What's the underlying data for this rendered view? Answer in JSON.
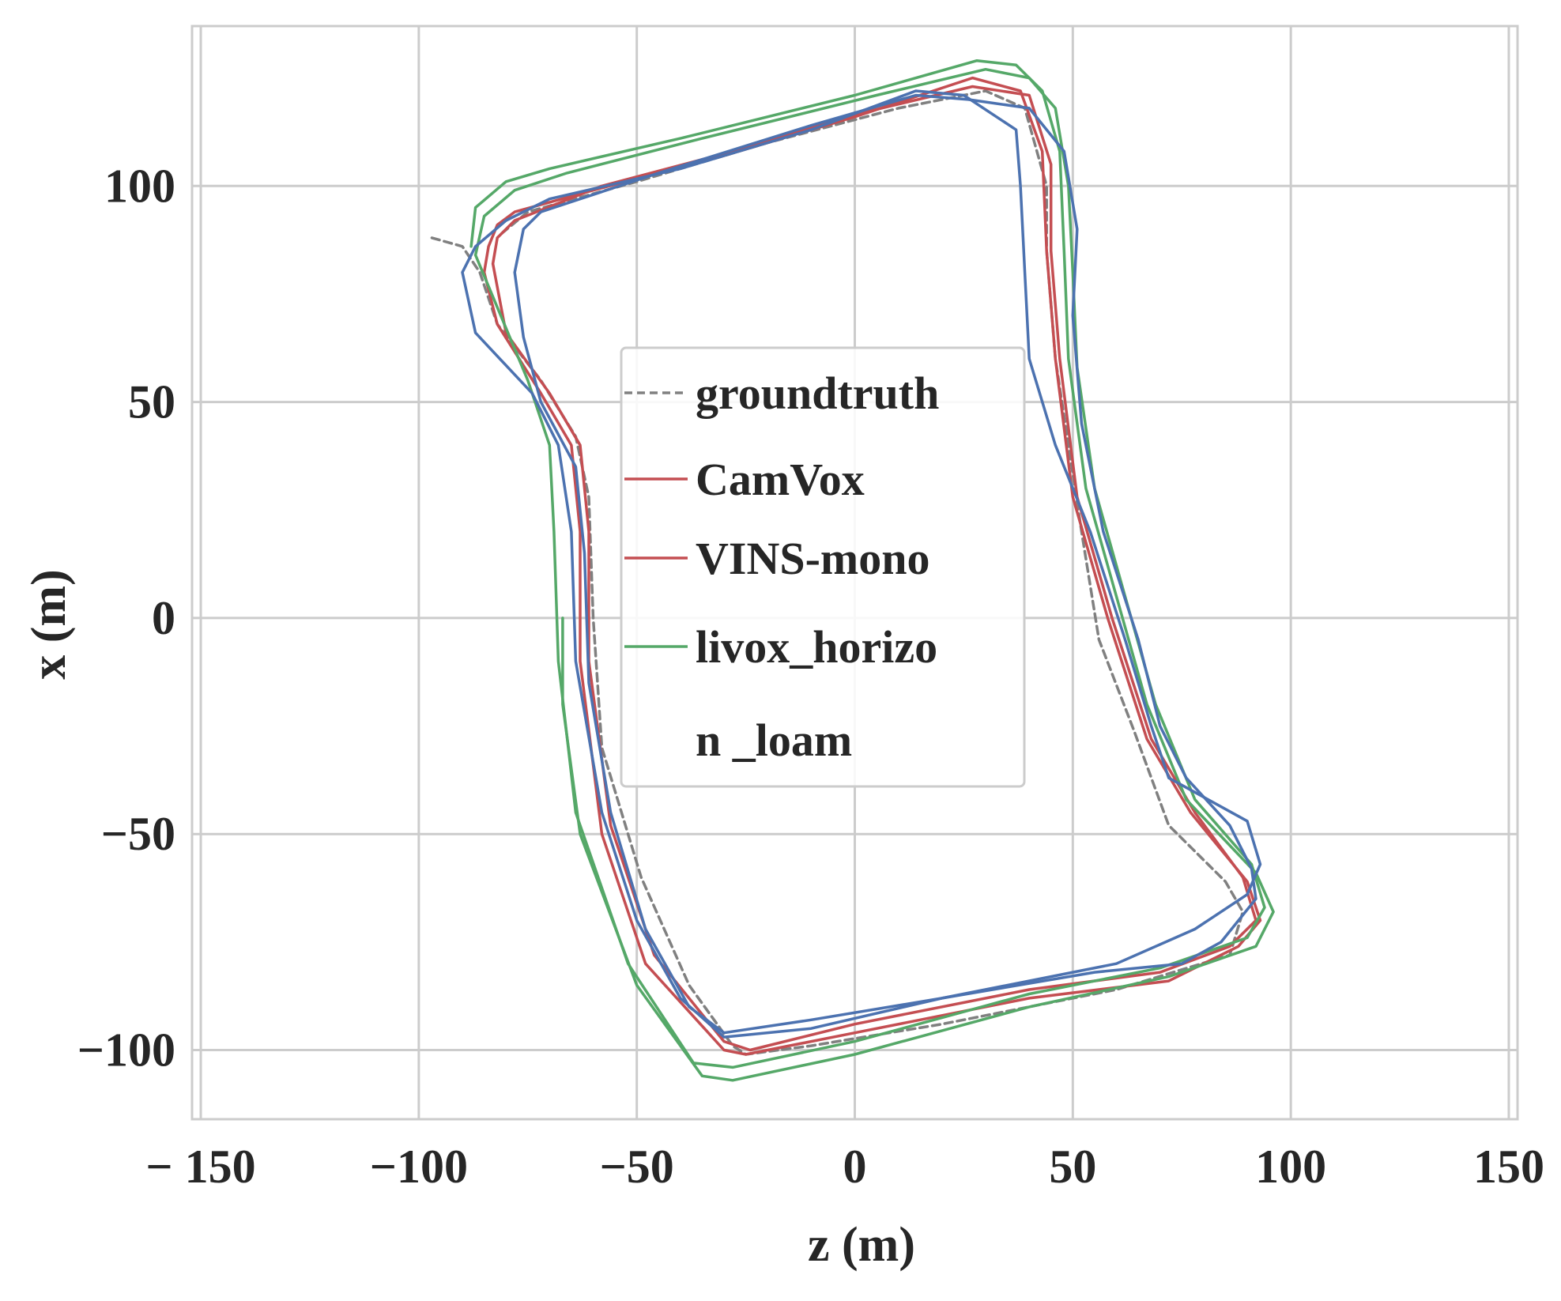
{
  "chart_data": {
    "type": "line",
    "xlabel": "z (m)",
    "ylabel": "x (m)",
    "xlim": [
      -152,
      152
    ],
    "ylim": [
      -116,
      137
    ],
    "x_ticks": [
      -150,
      -100,
      -50,
      0,
      50,
      100,
      150
    ],
    "x_tick_labels": [
      "− 150",
      "−100",
      "−50",
      "0",
      "50",
      "100",
      "150"
    ],
    "y_ticks": [
      -100,
      -50,
      0,
      50,
      100
    ],
    "y_tick_labels": [
      "−100",
      "−50",
      "0",
      "50",
      "100"
    ],
    "grid": true,
    "legend_placement": "center",
    "legend": [
      {
        "label": "groundtruth",
        "series": 0
      },
      {
        "label": "CamVox",
        "series": 1
      },
      {
        "label": "VINS-mono",
        "series": 2
      },
      {
        "label": "livox_horizo",
        "series": 3
      },
      {
        "label": "n _loam",
        "series": -1
      }
    ],
    "series": [
      {
        "name": "groundtruth",
        "color": "#808080",
        "dashed": true,
        "points": [
          [
            -97,
            88
          ],
          [
            -90,
            86
          ],
          [
            -86,
            80
          ],
          [
            -82,
            68
          ],
          [
            -72,
            55
          ],
          [
            -64,
            42
          ],
          [
            -61,
            28
          ],
          [
            -60,
            0
          ],
          [
            -58,
            -30
          ],
          [
            -49,
            -60
          ],
          [
            -38,
            -85
          ],
          [
            -28,
            -99
          ],
          [
            -25,
            -101
          ],
          [
            -10,
            -99
          ],
          [
            20,
            -94
          ],
          [
            60,
            -86
          ],
          [
            86,
            -78
          ],
          [
            89,
            -68
          ],
          [
            85,
            -61
          ],
          [
            72,
            -48
          ],
          [
            64,
            -26
          ],
          [
            56,
            -5
          ],
          [
            52,
            20
          ],
          [
            46,
            60
          ],
          [
            44,
            85
          ],
          [
            44,
            100
          ],
          [
            39,
            118
          ],
          [
            30,
            122
          ],
          [
            10,
            118
          ],
          [
            -20,
            110
          ],
          [
            -50,
            101
          ],
          [
            -75,
            94
          ],
          [
            -81,
            89
          ]
        ]
      },
      {
        "name": "CamVox",
        "color": "#c44e52",
        "dashed": false,
        "points": [
          [
            -85,
            80
          ],
          [
            -84,
            86
          ],
          [
            -82,
            91
          ],
          [
            -78,
            94
          ],
          [
            -60,
            99
          ],
          [
            -30,
            107
          ],
          [
            0,
            116
          ],
          [
            27,
            125
          ],
          [
            38,
            122
          ],
          [
            43,
            108
          ],
          [
            44,
            85
          ],
          [
            46,
            60
          ],
          [
            50,
            28
          ],
          [
            58,
            0
          ],
          [
            67,
            -28
          ],
          [
            77,
            -45
          ],
          [
            90,
            -61
          ],
          [
            93,
            -70
          ],
          [
            88,
            -76
          ],
          [
            72,
            -84
          ],
          [
            40,
            -88
          ],
          [
            0,
            -96
          ],
          [
            -25,
            -101
          ],
          [
            -30,
            -100
          ],
          [
            -48,
            -80
          ],
          [
            -58,
            -50
          ],
          [
            -63,
            -10
          ],
          [
            -63,
            20
          ],
          [
            -65,
            40
          ],
          [
            -72,
            52
          ],
          [
            -82,
            68
          ],
          [
            -85,
            80
          ]
        ]
      },
      {
        "name": "CamVox",
        "color": "#c44e52",
        "dashed": false,
        "points": [
          [
            -83,
            82
          ],
          [
            -82,
            88
          ],
          [
            -78,
            92
          ],
          [
            -58,
            100
          ],
          [
            -28,
            108
          ],
          [
            2,
            117
          ],
          [
            27,
            123
          ],
          [
            40,
            121
          ],
          [
            45,
            105
          ],
          [
            45,
            85
          ],
          [
            47,
            60
          ],
          [
            51,
            28
          ],
          [
            59,
            0
          ],
          [
            68,
            -28
          ],
          [
            78,
            -45
          ],
          [
            89,
            -60
          ],
          [
            92,
            -70
          ],
          [
            86,
            -76
          ],
          [
            70,
            -82
          ],
          [
            40,
            -86
          ],
          [
            0,
            -94
          ],
          [
            -24,
            -100
          ],
          [
            -30,
            -98
          ],
          [
            -46,
            -78
          ],
          [
            -56,
            -48
          ],
          [
            -61,
            -10
          ],
          [
            -61,
            20
          ],
          [
            -63,
            40
          ],
          [
            -70,
            52
          ],
          [
            -80,
            66
          ],
          [
            -83,
            82
          ]
        ]
      },
      {
        "name": "VINS-mono",
        "color": "#55a868",
        "dashed": false,
        "points": [
          [
            -88,
            86
          ],
          [
            -87,
            95
          ],
          [
            -80,
            101
          ],
          [
            -70,
            104
          ],
          [
            -40,
            111
          ],
          [
            0,
            121
          ],
          [
            28,
            129
          ],
          [
            37,
            128
          ],
          [
            43,
            122
          ],
          [
            47,
            108
          ],
          [
            48,
            85
          ],
          [
            49,
            60
          ],
          [
            53,
            30
          ],
          [
            60,
            5
          ],
          [
            67,
            -20
          ],
          [
            76,
            -42
          ],
          [
            92,
            -59
          ],
          [
            96,
            -68
          ],
          [
            92,
            -76
          ],
          [
            72,
            -83
          ],
          [
            40,
            -90
          ],
          [
            0,
            -101
          ],
          [
            -28,
            -107
          ],
          [
            -35,
            -106
          ],
          [
            -50,
            -85
          ],
          [
            -63,
            -50
          ],
          [
            -67,
            -20
          ],
          [
            -67,
            0
          ]
        ]
      },
      {
        "name": "VINS-mono",
        "color": "#55a868",
        "dashed": false,
        "points": [
          [
            -87,
            84
          ],
          [
            -85,
            93
          ],
          [
            -78,
            99
          ],
          [
            -66,
            103
          ],
          [
            -35,
            111
          ],
          [
            5,
            121
          ],
          [
            30,
            127
          ],
          [
            40,
            125
          ],
          [
            46,
            118
          ],
          [
            49,
            100
          ],
          [
            50,
            80
          ],
          [
            51,
            58
          ],
          [
            55,
            30
          ],
          [
            62,
            5
          ],
          [
            69,
            -20
          ],
          [
            78,
            -42
          ],
          [
            91,
            -57
          ],
          [
            94,
            -67
          ],
          [
            90,
            -74
          ],
          [
            70,
            -81
          ],
          [
            40,
            -87
          ],
          [
            0,
            -98
          ],
          [
            -28,
            -104
          ],
          [
            -37,
            -103
          ],
          [
            -52,
            -80
          ],
          [
            -64,
            -45
          ],
          [
            -68,
            -10
          ],
          [
            -69,
            20
          ],
          [
            -70,
            40
          ],
          [
            -75,
            55
          ],
          [
            -87,
            84
          ]
        ]
      },
      {
        "name": "livox_horizo",
        "color": "#4c72b0",
        "dashed": false,
        "points": [
          [
            -80,
            92
          ],
          [
            -70,
            97
          ],
          [
            -40,
            104
          ],
          [
            -10,
            113
          ],
          [
            14,
            122
          ],
          [
            25,
            121
          ],
          [
            37,
            113
          ],
          [
            38,
            100
          ],
          [
            39,
            80
          ],
          [
            40,
            60
          ],
          [
            46,
            40
          ],
          [
            54,
            20
          ],
          [
            62,
            -5
          ],
          [
            68,
            -25
          ],
          [
            72,
            -37
          ],
          [
            90,
            -47
          ],
          [
            93,
            -57
          ],
          [
            90,
            -64
          ],
          [
            78,
            -72
          ],
          [
            60,
            -80
          ],
          [
            20,
            -88
          ],
          [
            -10,
            -95
          ],
          [
            -30,
            -97
          ],
          [
            -40,
            -88
          ],
          [
            -50,
            -70
          ],
          [
            -58,
            -45
          ],
          [
            -64,
            -10
          ],
          [
            -65,
            20
          ],
          [
            -68,
            40
          ],
          [
            -74,
            52
          ],
          [
            -87,
            66
          ],
          [
            -90,
            80
          ],
          [
            -87,
            86
          ],
          [
            -80,
            92
          ]
        ]
      },
      {
        "name": "livox_horizo",
        "color": "#4c72b0",
        "dashed": false,
        "points": [
          [
            -76,
            90
          ],
          [
            -72,
            94
          ],
          [
            -45,
            103
          ],
          [
            -10,
            114
          ],
          [
            14,
            121
          ],
          [
            26,
            120
          ],
          [
            40,
            118
          ],
          [
            48,
            108
          ],
          [
            51,
            90
          ],
          [
            50,
            70
          ],
          [
            52,
            45
          ],
          [
            57,
            20
          ],
          [
            65,
            -5
          ],
          [
            70,
            -25
          ],
          [
            76,
            -37
          ],
          [
            86,
            -48
          ],
          [
            91,
            -58
          ],
          [
            92,
            -65
          ],
          [
            84,
            -75
          ],
          [
            75,
            -80
          ],
          [
            55,
            -82
          ],
          [
            20,
            -88
          ],
          [
            -10,
            -93
          ],
          [
            -30,
            -96
          ],
          [
            -38,
            -90
          ],
          [
            -48,
            -72
          ],
          [
            -56,
            -45
          ],
          [
            -61,
            -15
          ],
          [
            -62,
            15
          ],
          [
            -64,
            35
          ],
          [
            -72,
            50
          ],
          [
            -76,
            65
          ],
          [
            -78,
            80
          ],
          [
            -76,
            90
          ]
        ]
      }
    ]
  }
}
